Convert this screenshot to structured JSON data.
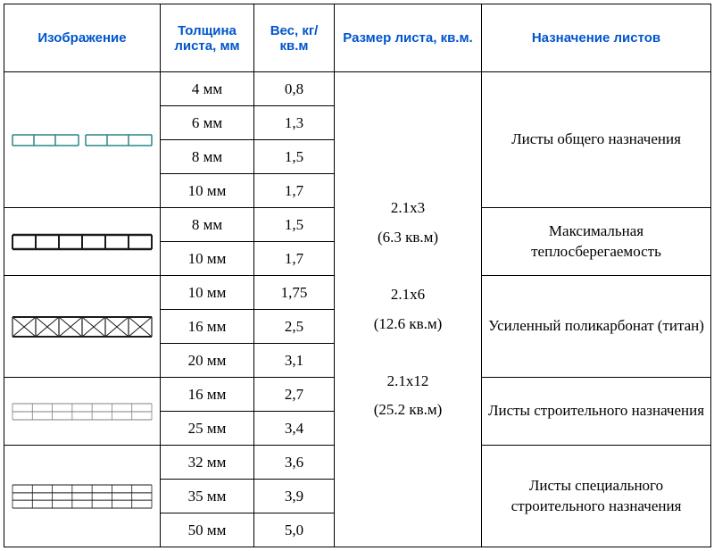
{
  "headers": {
    "image": "Изображение",
    "thickness": "Толщина листа, мм",
    "weight": "Вес, кг/кв.м",
    "size": "Размер листа, кв.м.",
    "purpose": "Назначение листов"
  },
  "size_text": "2.1х3\n(6.3 кв.м)\n\n2.1х6\n(12.6 кв.м)\n\n2.1х12\n(25.2 кв.м)",
  "groups": [
    {
      "purpose": "Листы общего назначения",
      "svg_type": "teal_outline",
      "rows": [
        {
          "thickness": "4 мм",
          "weight": "0,8"
        },
        {
          "thickness": "6 мм",
          "weight": "1,3"
        },
        {
          "thickness": "8 мм",
          "weight": "1,5"
        },
        {
          "thickness": "10 мм",
          "weight": "1,7"
        }
      ]
    },
    {
      "purpose": "Максимальная теплосберегаемость",
      "svg_type": "thick_ladder",
      "rows": [
        {
          "thickness": "8 мм",
          "weight": "1,5"
        },
        {
          "thickness": "10 мм",
          "weight": "1,7"
        }
      ]
    },
    {
      "purpose": "Усиленный поликарбонат (титан)",
      "svg_type": "x_truss",
      "rows": [
        {
          "thickness": "10 мм",
          "weight": "1,75"
        },
        {
          "thickness": "16 мм",
          "weight": "2,5"
        },
        {
          "thickness": "20 мм",
          "weight": "3,1"
        }
      ]
    },
    {
      "purpose": "Листы строительного назначения",
      "svg_type": "thin_double",
      "rows": [
        {
          "thickness": "16 мм",
          "weight": "2,7"
        },
        {
          "thickness": "25 мм",
          "weight": "3,4"
        }
      ]
    },
    {
      "purpose": "Листы специального строительного назначения",
      "svg_type": "thin_triple",
      "rows": [
        {
          "thickness": "32 мм",
          "weight": "3,6"
        },
        {
          "thickness": "35 мм",
          "weight": "3,9"
        },
        {
          "thickness": "50 мм",
          "weight": "5,0"
        }
      ]
    }
  ],
  "styling": {
    "header_color": "#0055cc",
    "border_color": "#000000",
    "svg_colors": {
      "teal": "#2a8585",
      "black": "#1a1a1a",
      "gray": "#808080"
    }
  }
}
